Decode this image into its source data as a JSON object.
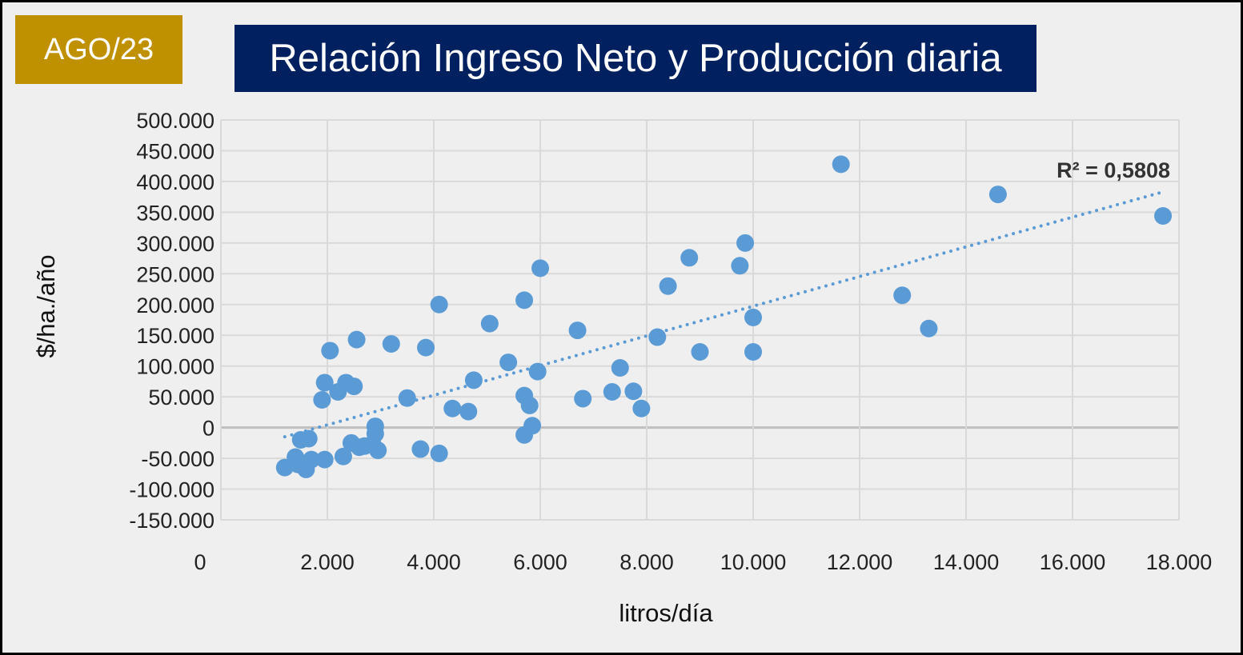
{
  "badge": {
    "label": "AGO/23",
    "color": "#bf9000"
  },
  "colors": {
    "title_bg": "#002060",
    "point": "#5b9bd5",
    "grid": "#d9d9d9",
    "background": "#efefef"
  },
  "chart_data": {
    "type": "scatter",
    "title": "Relación Ingreso Neto y Producción diaria",
    "xlabel": "litros/día",
    "ylabel": "$/ha./año",
    "xlim": [
      0,
      18000
    ],
    "ylim": [
      -150000,
      500000
    ],
    "x_ticks": [
      0,
      2000,
      4000,
      6000,
      8000,
      10000,
      12000,
      14000,
      16000,
      18000
    ],
    "x_tick_labels": [
      "0",
      "2.000",
      "4.000",
      "6.000",
      "8.000",
      "10.000",
      "12.000",
      "14.000",
      "16.000",
      "18.000"
    ],
    "y_ticks": [
      500000,
      450000,
      400000,
      350000,
      300000,
      250000,
      200000,
      150000,
      100000,
      50000,
      0,
      -50000,
      -100000,
      -150000
    ],
    "y_tick_labels": [
      "500.000",
      "450.000",
      "400.000",
      "350.000",
      "300.000",
      "250.000",
      "200.000",
      "150.000",
      "100.000",
      "50.000",
      "0",
      "-50.000",
      "-100.000",
      "-150.000"
    ],
    "grid": true,
    "trendline": {
      "type": "linear",
      "from": [
        1200,
        -15000
      ],
      "to": [
        17700,
        383000
      ],
      "label": "R² = 0,5808"
    },
    "points": [
      [
        1200,
        -65000
      ],
      [
        1400,
        -48000
      ],
      [
        1450,
        -60000
      ],
      [
        1500,
        -20000
      ],
      [
        1600,
        -68000
      ],
      [
        1650,
        -18000
      ],
      [
        1700,
        -52000
      ],
      [
        1900,
        45000
      ],
      [
        1950,
        73000
      ],
      [
        1950,
        -52000
      ],
      [
        2050,
        125000
      ],
      [
        2200,
        58000
      ],
      [
        2300,
        -47000
      ],
      [
        2350,
        73000
      ],
      [
        2450,
        -25000
      ],
      [
        2500,
        67000
      ],
      [
        2550,
        143000
      ],
      [
        2600,
        -32000
      ],
      [
        2700,
        -30000
      ],
      [
        2850,
        -27000
      ],
      [
        2900,
        -10000
      ],
      [
        2900,
        2000
      ],
      [
        2950,
        -37000
      ],
      [
        3200,
        136000
      ],
      [
        3500,
        48000
      ],
      [
        3750,
        -35000
      ],
      [
        3850,
        130000
      ],
      [
        4100,
        200000
      ],
      [
        4100,
        -42000
      ],
      [
        4350,
        31000
      ],
      [
        4650,
        26000
      ],
      [
        4750,
        77000
      ],
      [
        5050,
        169000
      ],
      [
        5400,
        106000
      ],
      [
        5700,
        207000
      ],
      [
        5700,
        52000
      ],
      [
        5700,
        -12000
      ],
      [
        5800,
        36000
      ],
      [
        5850,
        3000
      ],
      [
        5950,
        91000
      ],
      [
        6000,
        259000
      ],
      [
        6700,
        158000
      ],
      [
        6800,
        47000
      ],
      [
        7350,
        58000
      ],
      [
        7500,
        97000
      ],
      [
        7750,
        59000
      ],
      [
        7900,
        31000
      ],
      [
        8200,
        147000
      ],
      [
        8400,
        230000
      ],
      [
        8800,
        276000
      ],
      [
        9000,
        123000
      ],
      [
        9750,
        263000
      ],
      [
        9850,
        300000
      ],
      [
        10000,
        179000
      ],
      [
        10000,
        123000
      ],
      [
        11650,
        428000
      ],
      [
        12800,
        215000
      ],
      [
        13300,
        161000
      ],
      [
        14600,
        379000
      ],
      [
        17700,
        344000
      ]
    ]
  }
}
